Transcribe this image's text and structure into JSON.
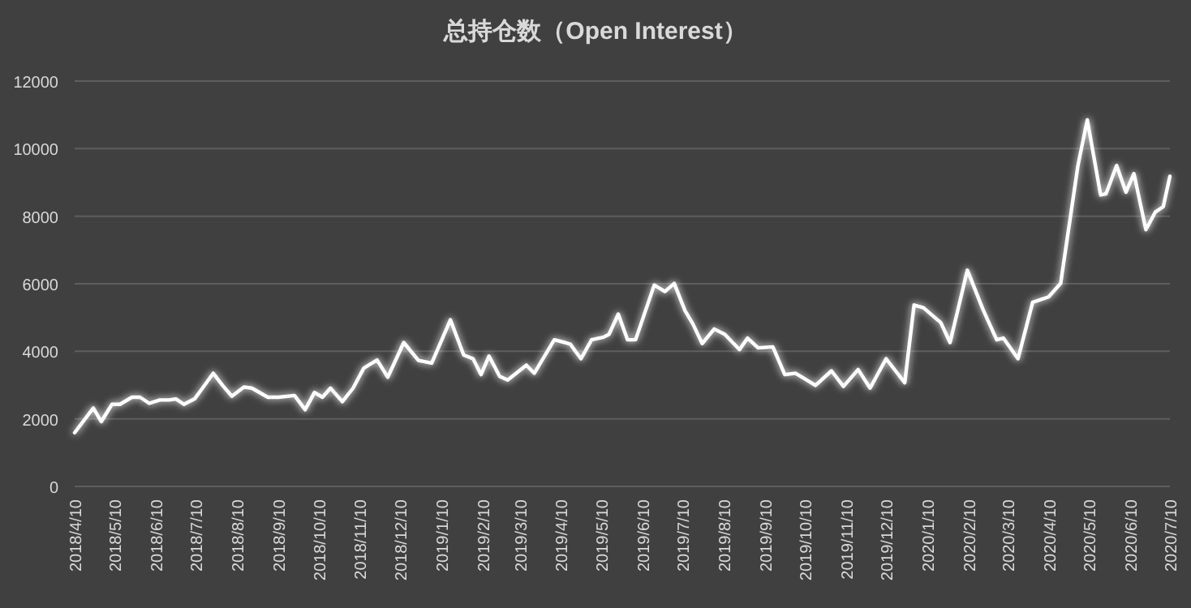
{
  "chart_data": {
    "type": "line",
    "title": "总持仓数（Open Interest）",
    "x": [
      "2018-04-10",
      "2018-04-24",
      "2018-04-30",
      "2018-05-08",
      "2018-05-14",
      "2018-05-23",
      "2018-05-29",
      "2018-06-05",
      "2018-06-13",
      "2018-06-20",
      "2018-06-25",
      "2018-07-01",
      "2018-07-09",
      "2018-07-15",
      "2018-07-23",
      "2018-07-30",
      "2018-08-06",
      "2018-08-15",
      "2018-08-21",
      "2018-09-02",
      "2018-09-10",
      "2018-09-22",
      "2018-09-30",
      "2018-10-07",
      "2018-10-13",
      "2018-10-19",
      "2018-10-28",
      "2018-11-05",
      "2018-11-13",
      "2018-11-23",
      "2018-12-01",
      "2018-12-13",
      "2018-12-24",
      "2019-01-03",
      "2019-01-17",
      "2019-01-27",
      "2019-02-03",
      "2019-02-09",
      "2019-02-15",
      "2019-02-23",
      "2019-03-01",
      "2019-03-15",
      "2019-03-21",
      "2019-04-05",
      "2019-04-13",
      "2019-04-17",
      "2019-04-25",
      "2019-05-03",
      "2019-05-12",
      "2019-05-16",
      "2019-05-23",
      "2019-05-30",
      "2019-06-05",
      "2019-06-19",
      "2019-06-27",
      "2019-07-04",
      "2019-07-12",
      "2019-07-18",
      "2019-07-25",
      "2019-08-03",
      "2019-08-11",
      "2019-08-22",
      "2019-08-28",
      "2019-09-05",
      "2019-09-16",
      "2019-09-25",
      "2019-10-03",
      "2019-10-18",
      "2019-10-30",
      "2019-11-08",
      "2019-11-19",
      "2019-11-28",
      "2019-12-10",
      "2019-12-24",
      "2019-12-31",
      "2020-01-07",
      "2020-01-20",
      "2020-01-27",
      "2020-02-09",
      "2020-02-21",
      "2020-03-02",
      "2020-03-07",
      "2020-03-18",
      "2020-03-29",
      "2020-04-10",
      "2020-04-19",
      "2020-05-02",
      "2020-05-09",
      "2020-05-19",
      "2020-05-23",
      "2020-05-31",
      "2020-06-07",
      "2020-06-13",
      "2020-06-22",
      "2020-06-29",
      "2020-07-05",
      "2020-07-10"
    ],
    "series": [
      {
        "color": "#ffffff",
        "values": [
          1590,
          2320,
          1920,
          2430,
          2430,
          2640,
          2640,
          2460,
          2560,
          2560,
          2590,
          2430,
          2590,
          2910,
          3350,
          2990,
          2670,
          2940,
          2910,
          2640,
          2640,
          2690,
          2270,
          2780,
          2640,
          2910,
          2510,
          2910,
          3500,
          3740,
          3230,
          4260,
          3730,
          3650,
          4930,
          3890,
          3780,
          3310,
          3860,
          3260,
          3150,
          3590,
          3350,
          4340,
          4260,
          4210,
          3780,
          4340,
          4420,
          4500,
          5100,
          4340,
          4340,
          5960,
          5770,
          6010,
          5210,
          4810,
          4230,
          4660,
          4500,
          4050,
          4390,
          4100,
          4130,
          3310,
          3350,
          2990,
          3420,
          2960,
          3460,
          2910,
          3780,
          3070,
          5370,
          5290,
          4850,
          4260,
          6400,
          5210,
          4340,
          4390,
          3780,
          5450,
          5610,
          6010,
          9500,
          10850,
          8630,
          8660,
          9500,
          8710,
          9260,
          7600,
          8120,
          8280,
          9180
        ]
      }
    ],
    "xlim": [
      "2018-04-10",
      "2020-07-10"
    ],
    "xticks": [
      {
        "value": "2018-04-10",
        "label": "2018/4/10"
      },
      {
        "value": "2018-05-10",
        "label": "2018/5/10"
      },
      {
        "value": "2018-06-10",
        "label": "2018/6/10"
      },
      {
        "value": "2018-07-10",
        "label": "2018/7/10"
      },
      {
        "value": "2018-08-10",
        "label": "2018/8/10"
      },
      {
        "value": "2018-09-10",
        "label": "2018/9/10"
      },
      {
        "value": "2018-10-10",
        "label": "2018/10/10"
      },
      {
        "value": "2018-11-10",
        "label": "2018/11/10"
      },
      {
        "value": "2018-12-10",
        "label": "2018/12/10"
      },
      {
        "value": "2019-01-10",
        "label": "2019/1/10"
      },
      {
        "value": "2019-02-10",
        "label": "2019/2/10"
      },
      {
        "value": "2019-03-10",
        "label": "2019/3/10"
      },
      {
        "value": "2019-04-10",
        "label": "2019/4/10"
      },
      {
        "value": "2019-05-10",
        "label": "2019/5/10"
      },
      {
        "value": "2019-06-10",
        "label": "2019/6/10"
      },
      {
        "value": "2019-07-10",
        "label": "2019/7/10"
      },
      {
        "value": "2019-08-10",
        "label": "2019/8/10"
      },
      {
        "value": "2019-09-10",
        "label": "2019/9/10"
      },
      {
        "value": "2019-10-10",
        "label": "2019/10/10"
      },
      {
        "value": "2019-11-10",
        "label": "2019/11/10"
      },
      {
        "value": "2019-12-10",
        "label": "2019/12/10"
      },
      {
        "value": "2020-01-10",
        "label": "2020/1/10"
      },
      {
        "value": "2020-02-10",
        "label": "2020/2/10"
      },
      {
        "value": "2020-03-10",
        "label": "2020/3/10"
      },
      {
        "value": "2020-04-10",
        "label": "2020/4/10"
      },
      {
        "value": "2020-05-10",
        "label": "2020/5/10"
      },
      {
        "value": "2020-06-10",
        "label": "2020/6/10"
      },
      {
        "value": "2020-07-10",
        "label": "2020/7/10"
      }
    ],
    "ylim": [
      0,
      12000
    ],
    "yticks": [
      0,
      2000,
      4000,
      6000,
      8000,
      10000,
      12000
    ],
    "grid": "y",
    "line_style": "solid"
  }
}
